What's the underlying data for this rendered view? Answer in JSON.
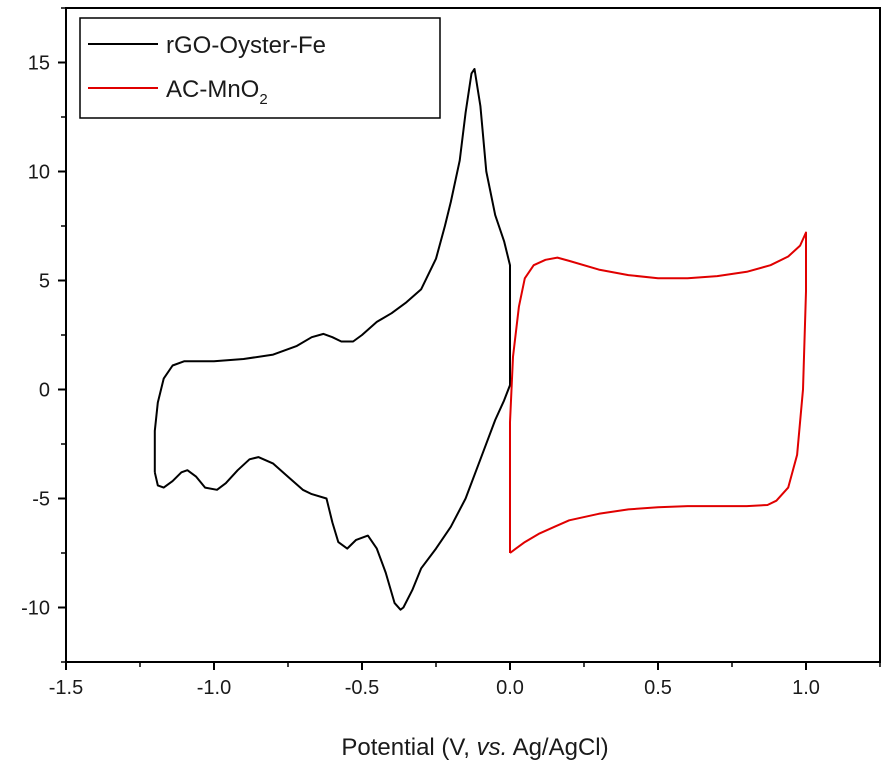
{
  "chart_data": {
    "type": "line",
    "title": "",
    "xlabel": {
      "pre": "Potential (V, ",
      "italic": "vs.",
      "post": " Ag/AgCl)"
    },
    "ylabel": "",
    "xlim": [
      -1.5,
      1.25
    ],
    "ylim": [
      -12.5,
      17.5
    ],
    "x_ticks": [
      -1.5,
      -1.0,
      -0.5,
      0.0,
      0.5,
      1.0
    ],
    "x_tick_labels": [
      "-1.5",
      "-1.0",
      "-0.5",
      "0.0",
      "0.5",
      "1.0"
    ],
    "y_ticks": [
      -10,
      -5,
      0,
      5,
      10,
      15
    ],
    "y_tick_labels": [
      "-10",
      "-5",
      "0",
      "5",
      "10",
      "15"
    ],
    "grid": false,
    "legend_position": "top-left",
    "series": [
      {
        "name": "rGO-Oyster-Fe",
        "color": "#000000",
        "x": [
          -1.2,
          -1.2,
          -1.19,
          -1.17,
          -1.14,
          -1.1,
          -1.05,
          -1.0,
          -0.9,
          -0.8,
          -0.72,
          -0.67,
          -0.63,
          -0.6,
          -0.57,
          -0.53,
          -0.5,
          -0.45,
          -0.4,
          -0.35,
          -0.3,
          -0.25,
          -0.22,
          -0.2,
          -0.17,
          -0.15,
          -0.13,
          -0.12,
          -0.1,
          -0.08,
          -0.05,
          -0.02,
          0.0,
          0.0,
          -0.02,
          -0.05,
          -0.1,
          -0.15,
          -0.2,
          -0.25,
          -0.3,
          -0.33,
          -0.36,
          -0.37,
          -0.39,
          -0.42,
          -0.45,
          -0.48,
          -0.52,
          -0.55,
          -0.58,
          -0.6,
          -0.62,
          -0.67,
          -0.7,
          -0.75,
          -0.8,
          -0.85,
          -0.88,
          -0.92,
          -0.96,
          -0.99,
          -1.03,
          -1.06,
          -1.09,
          -1.11,
          -1.14,
          -1.17,
          -1.19,
          -1.2
        ],
        "y": [
          -3.8,
          -1.9,
          -0.6,
          0.5,
          1.1,
          1.3,
          1.3,
          1.3,
          1.4,
          1.6,
          2.0,
          2.4,
          2.55,
          2.4,
          2.2,
          2.2,
          2.5,
          3.1,
          3.5,
          4.0,
          4.6,
          6.0,
          7.5,
          8.6,
          10.5,
          12.7,
          14.5,
          14.7,
          13.0,
          10.0,
          8.0,
          6.8,
          5.7,
          0.2,
          -0.5,
          -1.4,
          -3.2,
          -5.0,
          -6.3,
          -7.3,
          -8.2,
          -9.2,
          -10.0,
          -10.1,
          -9.8,
          -8.4,
          -7.3,
          -6.7,
          -6.9,
          -7.3,
          -7.0,
          -6.1,
          -5.0,
          -4.8,
          -4.6,
          -4.0,
          -3.4,
          -3.1,
          -3.2,
          -3.7,
          -4.3,
          -4.6,
          -4.5,
          -4.0,
          -3.7,
          -3.8,
          -4.2,
          -4.5,
          -4.4,
          -3.8
        ]
      },
      {
        "name": "AC-MnO",
        "name_subscript": "2",
        "color": "#e00000",
        "x": [
          0.0,
          0.0,
          0.01,
          0.03,
          0.05,
          0.08,
          0.12,
          0.16,
          0.2,
          0.3,
          0.4,
          0.5,
          0.6,
          0.7,
          0.8,
          0.88,
          0.94,
          0.98,
          1.0,
          1.0,
          0.99,
          0.97,
          0.94,
          0.9,
          0.87,
          0.8,
          0.7,
          0.6,
          0.5,
          0.4,
          0.3,
          0.2,
          0.15,
          0.1,
          0.05,
          0.02,
          0.0
        ],
        "y": [
          -7.5,
          -1.5,
          1.5,
          3.8,
          5.1,
          5.7,
          5.95,
          6.05,
          5.9,
          5.5,
          5.25,
          5.1,
          5.1,
          5.2,
          5.4,
          5.7,
          6.1,
          6.6,
          7.2,
          4.5,
          0.0,
          -3.0,
          -4.5,
          -5.1,
          -5.3,
          -5.35,
          -5.35,
          -5.35,
          -5.4,
          -5.5,
          -5.7,
          -6.0,
          -6.3,
          -6.6,
          -7.0,
          -7.3,
          -7.5
        ]
      }
    ]
  }
}
